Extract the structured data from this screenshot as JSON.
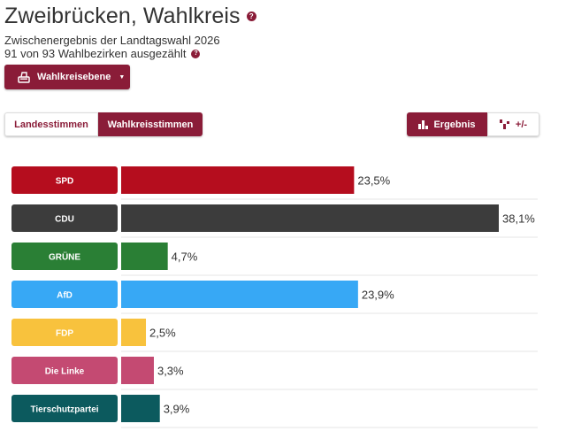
{
  "header": {
    "title": "Zweibrücken, Wahlkreis",
    "subtitle_line1": "Zwischenergebnis der Landtagswahl 2026",
    "subtitle_line2": "91 von 93 Wahlbezirken ausgezählt",
    "help_glyph": "?"
  },
  "level_button": {
    "label": "Wahlkreisebene",
    "icon": "ballot-box-icon",
    "caret": "▼"
  },
  "tabs": [
    {
      "label": "Landesstimmen",
      "active": false
    },
    {
      "label": "Wahlkreisstimmen",
      "active": true
    }
  ],
  "views": {
    "result_label": "Ergebnis",
    "result_icon": "bar-chart-icon",
    "diff_label": "+/-",
    "diff_icon": "diff-chart-icon"
  },
  "colors": {
    "accent": "#8a1c38"
  },
  "chart_data": {
    "type": "bar",
    "orientation": "horizontal",
    "categories": [
      "SPD",
      "CDU",
      "GRÜNE",
      "AfD",
      "FDP",
      "Die Linke",
      "Tierschutzpartei"
    ],
    "values": [
      23.5,
      38.1,
      4.7,
      23.9,
      2.5,
      3.3,
      3.9
    ],
    "value_labels": [
      "23,5%",
      "38,1%",
      "4,7%",
      "23,9%",
      "2,5%",
      "3,3%",
      "3,9%"
    ],
    "colors": [
      "#b50d1e",
      "#3c3c3c",
      "#2a7f35",
      "#37a8f5",
      "#f8c23d",
      "#c44a72",
      "#0c5a5e"
    ],
    "label_text_colors": [
      "#ffffff",
      "#ffffff",
      "#ffffff",
      "#ffffff",
      "#ffffff",
      "#ffffff",
      "#ffffff"
    ],
    "xlim": [
      0,
      38.1
    ],
    "unit": "%"
  }
}
